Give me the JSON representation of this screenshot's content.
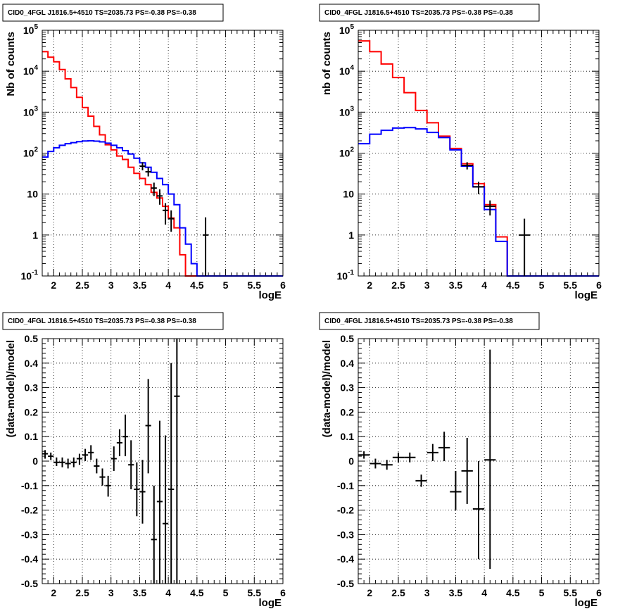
{
  "chart_data": [
    {
      "type": "line",
      "title": "CID0_4FGL J1816.5+4510 TS=2035.73 PS=-0.38 PS=-0.38",
      "xlabel": "logE",
      "ylabel": "Nb of counts",
      "xlim": [
        1.8,
        6.0
      ],
      "ylim": [
        0.1,
        100000
      ],
      "yscale": "log",
      "grid": true,
      "xticks": [
        "2",
        "2.5",
        "3",
        "3.5",
        "4",
        "4.5",
        "5",
        "5.5",
        "6"
      ],
      "yticks": [
        "10^-1",
        "1",
        "10",
        "10^2",
        "10^3",
        "10^4",
        "10^5"
      ],
      "bin_edges": [
        1.8,
        1.9,
        2.0,
        2.1,
        2.2,
        2.3,
        2.4,
        2.5,
        2.6,
        2.7,
        2.8,
        2.9,
        3.0,
        3.1,
        3.2,
        3.3,
        3.4,
        3.5,
        3.6,
        3.7,
        3.8,
        3.9,
        4.0,
        4.1,
        4.2,
        4.3,
        4.4,
        4.5,
        4.6,
        4.7,
        4.8,
        4.9,
        5.0,
        5.1,
        5.2,
        5.3,
        5.4,
        5.5,
        5.6,
        5.7,
        5.8,
        5.9,
        6.0
      ],
      "series": [
        {
          "style": "step",
          "color": "#ff0000",
          "values": [
            30000,
            22000,
            17000,
            11000,
            6500,
            4000,
            2300,
            1300,
            800,
            450,
            280,
            160,
            120,
            85,
            70,
            45,
            32,
            24,
            17,
            11,
            8,
            5,
            2.6,
            1.5,
            0.33,
            0.1,
            0.1,
            0.1,
            0.1,
            0.1,
            0.1,
            0.1,
            0.1,
            0.1,
            0.1,
            0.1,
            0.1,
            0.1,
            0.1,
            0.1,
            0.1,
            0.1
          ]
        },
        {
          "style": "step",
          "color": "#0000ff",
          "values": [
            80,
            110,
            135,
            155,
            170,
            180,
            190,
            198,
            200,
            196,
            188,
            175,
            155,
            135,
            115,
            95,
            75,
            58,
            45,
            34,
            24,
            17,
            10,
            5.5,
            1.5,
            0.6,
            0.2,
            0.1,
            0.1,
            0.1,
            0.1,
            0.1,
            0.1,
            0.1,
            0.1,
            0.1,
            0.1,
            0.1,
            0.1,
            0.1,
            0.1,
            0.1
          ]
        },
        {
          "style": "points",
          "color": "#000000",
          "x": [
            3.55,
            3.65,
            3.75,
            3.85,
            3.95,
            4.05,
            4.65
          ],
          "y": [
            48,
            35,
            14,
            9,
            4,
            2.5,
            1
          ],
          "ylow": [
            38,
            27,
            9,
            5.5,
            1.8,
            1.2,
            0.1
          ],
          "yhigh": [
            60,
            45,
            19,
            13,
            6,
            4,
            2.7
          ]
        }
      ]
    },
    {
      "type": "line",
      "title": "CID0_4FGL J1816.5+4510 TS=2035.73 PS=-0.38 PS=-0.38",
      "xlabel": "logE",
      "ylabel": "nb of counts",
      "xlim": [
        1.8,
        6.0
      ],
      "ylim": [
        0.1,
        100000
      ],
      "yscale": "log",
      "grid": true,
      "xticks": [
        "2",
        "2.5",
        "3",
        "3.5",
        "4",
        "4.5",
        "5",
        "5.5",
        "6"
      ],
      "yticks": [
        "10^-1",
        "1",
        "10",
        "10^2",
        "10^3",
        "10^4",
        "10^5"
      ],
      "bin_edges": [
        1.8,
        2.0,
        2.2,
        2.4,
        2.6,
        2.8,
        3.0,
        3.2,
        3.4,
        3.6,
        3.8,
        4.0,
        4.2,
        4.4,
        4.6,
        4.8,
        5.0,
        5.2,
        5.4,
        5.6,
        5.8,
        6.0
      ],
      "series": [
        {
          "style": "step",
          "color": "#ff0000",
          "values": [
            55000,
            30000,
            15000,
            7000,
            3000,
            1100,
            550,
            260,
            130,
            55,
            18,
            5.5,
            0.9,
            0.1,
            0.1,
            0.1,
            0.1,
            0.1,
            0.1,
            0.1,
            0.1
          ]
        },
        {
          "style": "step",
          "color": "#0000ff",
          "values": [
            170,
            290,
            360,
            410,
            420,
            390,
            320,
            240,
            120,
            48,
            15,
            4.2,
            0.7,
            0.1,
            0.1,
            0.1,
            0.1,
            0.1,
            0.1,
            0.1,
            0.1
          ]
        },
        {
          "style": "points",
          "color": "#000000",
          "x": [
            3.7,
            3.9,
            4.1,
            4.7
          ],
          "y": [
            50,
            15,
            5,
            1
          ],
          "ylow": [
            40,
            10,
            3,
            0.1
          ],
          "yhigh": [
            60,
            20,
            7,
            2.5
          ]
        }
      ]
    },
    {
      "type": "scatter",
      "title": "CID0_4FGL J1816.5+4510 TS=2035.73 PS=-0.38 PS=-0.38",
      "xlabel": "logE",
      "ylabel": "(data-model)/model",
      "xlim": [
        1.8,
        6.0
      ],
      "ylim": [
        -0.5,
        0.5
      ],
      "grid": true,
      "xticks": [
        "2",
        "2.5",
        "3",
        "3.5",
        "4",
        "4.5",
        "5",
        "5.5",
        "6"
      ],
      "yticks": [
        "-0.5",
        "-0.4",
        "-0.3",
        "-0.2",
        "-0.1",
        "0",
        "0.1",
        "0.2",
        "0.3",
        "0.4",
        "0.5"
      ],
      "x_halfwidth": 0.05,
      "points": [
        {
          "x": 1.85,
          "y": 0.03,
          "lo": 0.01,
          "hi": 0.045
        },
        {
          "x": 1.95,
          "y": 0.02,
          "lo": 0.005,
          "hi": 0.035
        },
        {
          "x": 2.05,
          "y": -0.005,
          "lo": -0.02,
          "hi": 0.015
        },
        {
          "x": 2.15,
          "y": -0.005,
          "lo": -0.025,
          "hi": 0.015
        },
        {
          "x": 2.25,
          "y": -0.01,
          "lo": -0.03,
          "hi": 0.01
        },
        {
          "x": 2.35,
          "y": -0.005,
          "lo": -0.025,
          "hi": 0.015
        },
        {
          "x": 2.45,
          "y": 0.01,
          "lo": -0.015,
          "hi": 0.03
        },
        {
          "x": 2.55,
          "y": 0.025,
          "lo": 0.0,
          "hi": 0.05
        },
        {
          "x": 2.65,
          "y": 0.035,
          "lo": 0.005,
          "hi": 0.065
        },
        {
          "x": 2.75,
          "y": -0.02,
          "lo": -0.05,
          "hi": 0.01
        },
        {
          "x": 2.85,
          "y": -0.065,
          "lo": -0.1,
          "hi": -0.03
        },
        {
          "x": 2.95,
          "y": -0.1,
          "lo": -0.145,
          "hi": -0.06
        },
        {
          "x": 3.05,
          "y": 0.01,
          "lo": -0.04,
          "hi": 0.06
        },
        {
          "x": 3.15,
          "y": 0.075,
          "lo": 0.02,
          "hi": 0.13
        },
        {
          "x": 3.25,
          "y": 0.1,
          "lo": 0.02,
          "hi": 0.19
        },
        {
          "x": 3.35,
          "y": -0.015,
          "lo": -0.115,
          "hi": 0.085
        },
        {
          "x": 3.45,
          "y": -0.115,
          "lo": -0.225,
          "hi": -0.005
        },
        {
          "x": 3.55,
          "y": -0.125,
          "lo": -0.255,
          "hi": 0.005
        },
        {
          "x": 3.65,
          "y": 0.145,
          "lo": -0.05,
          "hi": 0.335
        },
        {
          "x": 3.75,
          "y": -0.32,
          "lo": -0.5,
          "hi": -0.1
        },
        {
          "x": 3.85,
          "y": -0.165,
          "lo": -0.5,
          "hi": 0.165
        },
        {
          "x": 3.95,
          "y": -0.255,
          "lo": -0.5,
          "hi": 0.105
        },
        {
          "x": 4.05,
          "y": -0.115,
          "lo": -0.5,
          "hi": 0.4
        },
        {
          "x": 4.15,
          "y": 0.265,
          "lo": -0.5,
          "hi": 0.5
        }
      ]
    },
    {
      "type": "scatter",
      "title": "CID0_4FGL J1816.5+4510 TS=2035.73 PS=-0.38 PS=-0.38",
      "xlabel": "logE",
      "ylabel": "(data-model)/model",
      "xlim": [
        1.8,
        6.0
      ],
      "ylim": [
        -0.5,
        0.5
      ],
      "grid": true,
      "xticks": [
        "2",
        "2.5",
        "3",
        "3.5",
        "4",
        "4.5",
        "5",
        "5.5",
        "6"
      ],
      "yticks": [
        "-0.5",
        "-0.4",
        "-0.3",
        "-0.2",
        "-0.1",
        "0",
        "0.1",
        "0.2",
        "0.3",
        "0.4",
        "0.5"
      ],
      "x_halfwidth": 0.1,
      "points": [
        {
          "x": 1.9,
          "y": 0.025,
          "lo": 0.01,
          "hi": 0.04
        },
        {
          "x": 2.1,
          "y": -0.01,
          "lo": -0.03,
          "hi": 0.01
        },
        {
          "x": 2.3,
          "y": -0.015,
          "lo": -0.035,
          "hi": 0.005
        },
        {
          "x": 2.5,
          "y": 0.015,
          "lo": -0.005,
          "hi": 0.035
        },
        {
          "x": 2.7,
          "y": 0.015,
          "lo": -0.005,
          "hi": 0.035
        },
        {
          "x": 2.9,
          "y": -0.08,
          "lo": -0.105,
          "hi": -0.055
        },
        {
          "x": 3.1,
          "y": 0.035,
          "lo": 0.0,
          "hi": 0.07
        },
        {
          "x": 3.3,
          "y": 0.055,
          "lo": 0.0,
          "hi": 0.12
        },
        {
          "x": 3.5,
          "y": -0.125,
          "lo": -0.2,
          "hi": -0.04
        },
        {
          "x": 3.7,
          "y": -0.04,
          "lo": -0.175,
          "hi": 0.095
        },
        {
          "x": 3.9,
          "y": -0.195,
          "lo": -0.4,
          "hi": 0.0
        },
        {
          "x": 4.1,
          "y": 0.005,
          "lo": -0.44,
          "hi": 0.455
        }
      ]
    }
  ]
}
